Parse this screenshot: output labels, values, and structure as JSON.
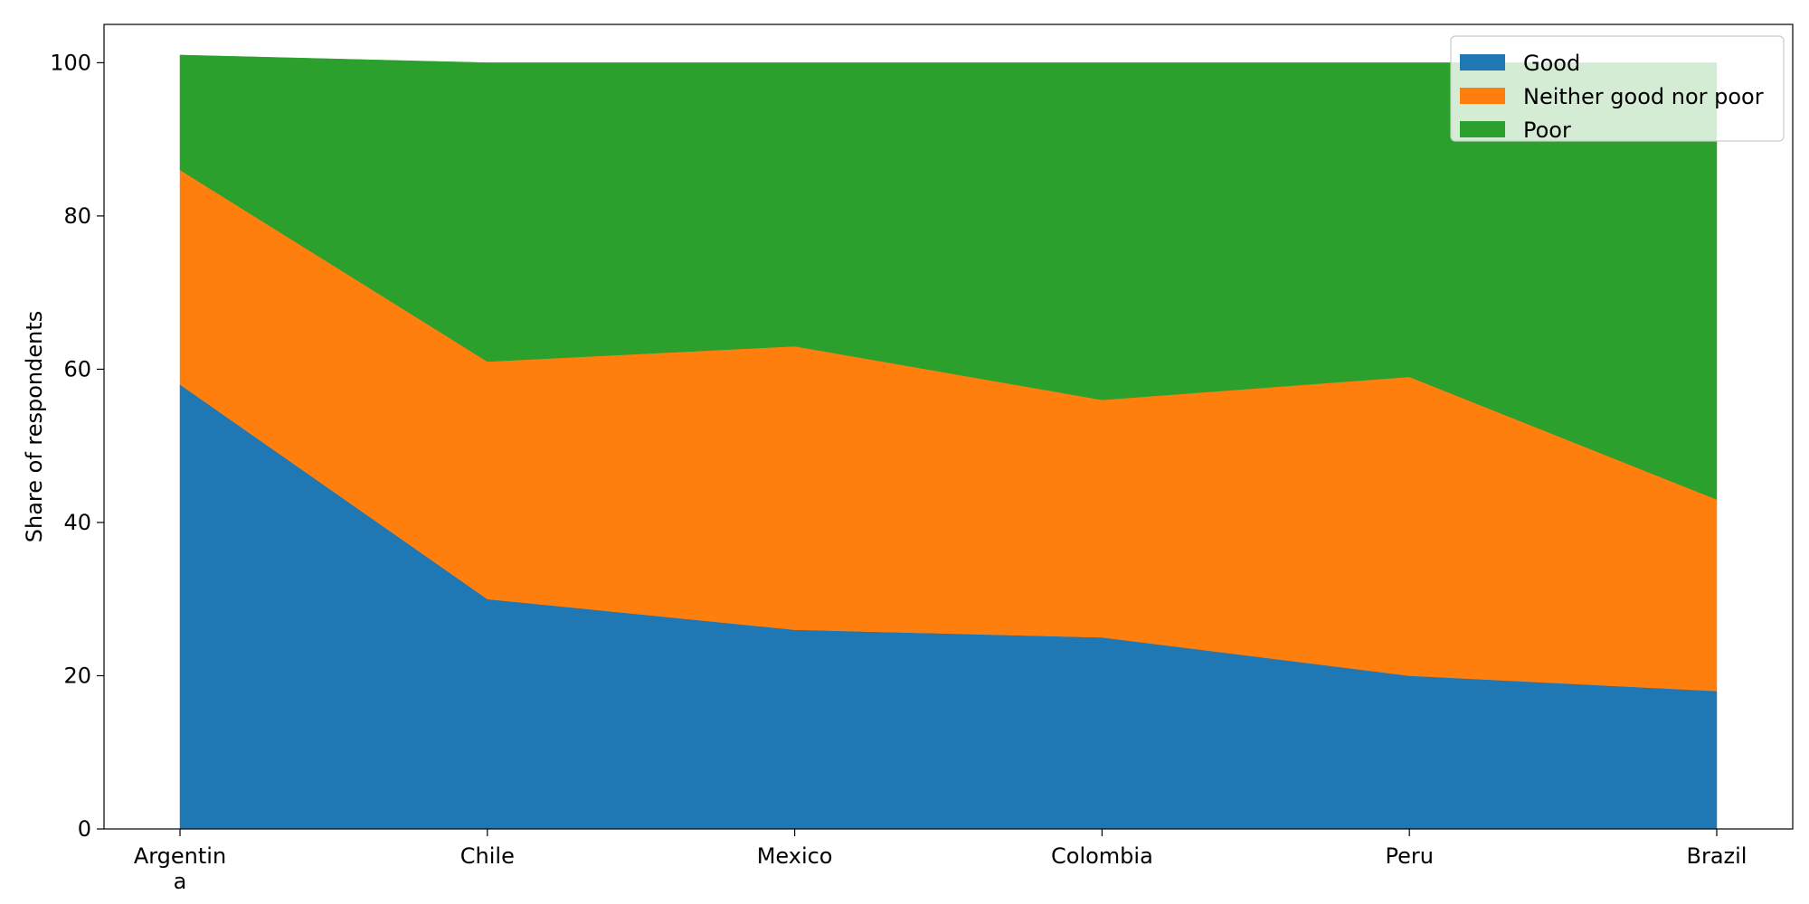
{
  "chart_data": {
    "type": "area",
    "stacked": true,
    "title": "",
    "xlabel": "",
    "ylabel": "Share of respondents",
    "ylim": [
      0,
      105
    ],
    "yticks": [
      0,
      20,
      40,
      60,
      80,
      100
    ],
    "categories": [
      "Argentin\na",
      "Chile",
      "Mexico",
      "Colombia",
      "Peru",
      "Brazil"
    ],
    "series": [
      {
        "name": "Good",
        "color": "#1f77b4",
        "values": [
          58,
          30,
          26,
          25,
          20,
          18
        ]
      },
      {
        "name": "Neither good nor poor",
        "color": "#ff7f0e",
        "values": [
          28,
          31,
          37,
          31,
          39,
          25
        ]
      },
      {
        "name": "Poor",
        "color": "#2ca02c",
        "values": [
          15,
          39,
          37,
          44,
          41,
          57
        ]
      }
    ],
    "grid": false,
    "legend_position": "top-right"
  }
}
